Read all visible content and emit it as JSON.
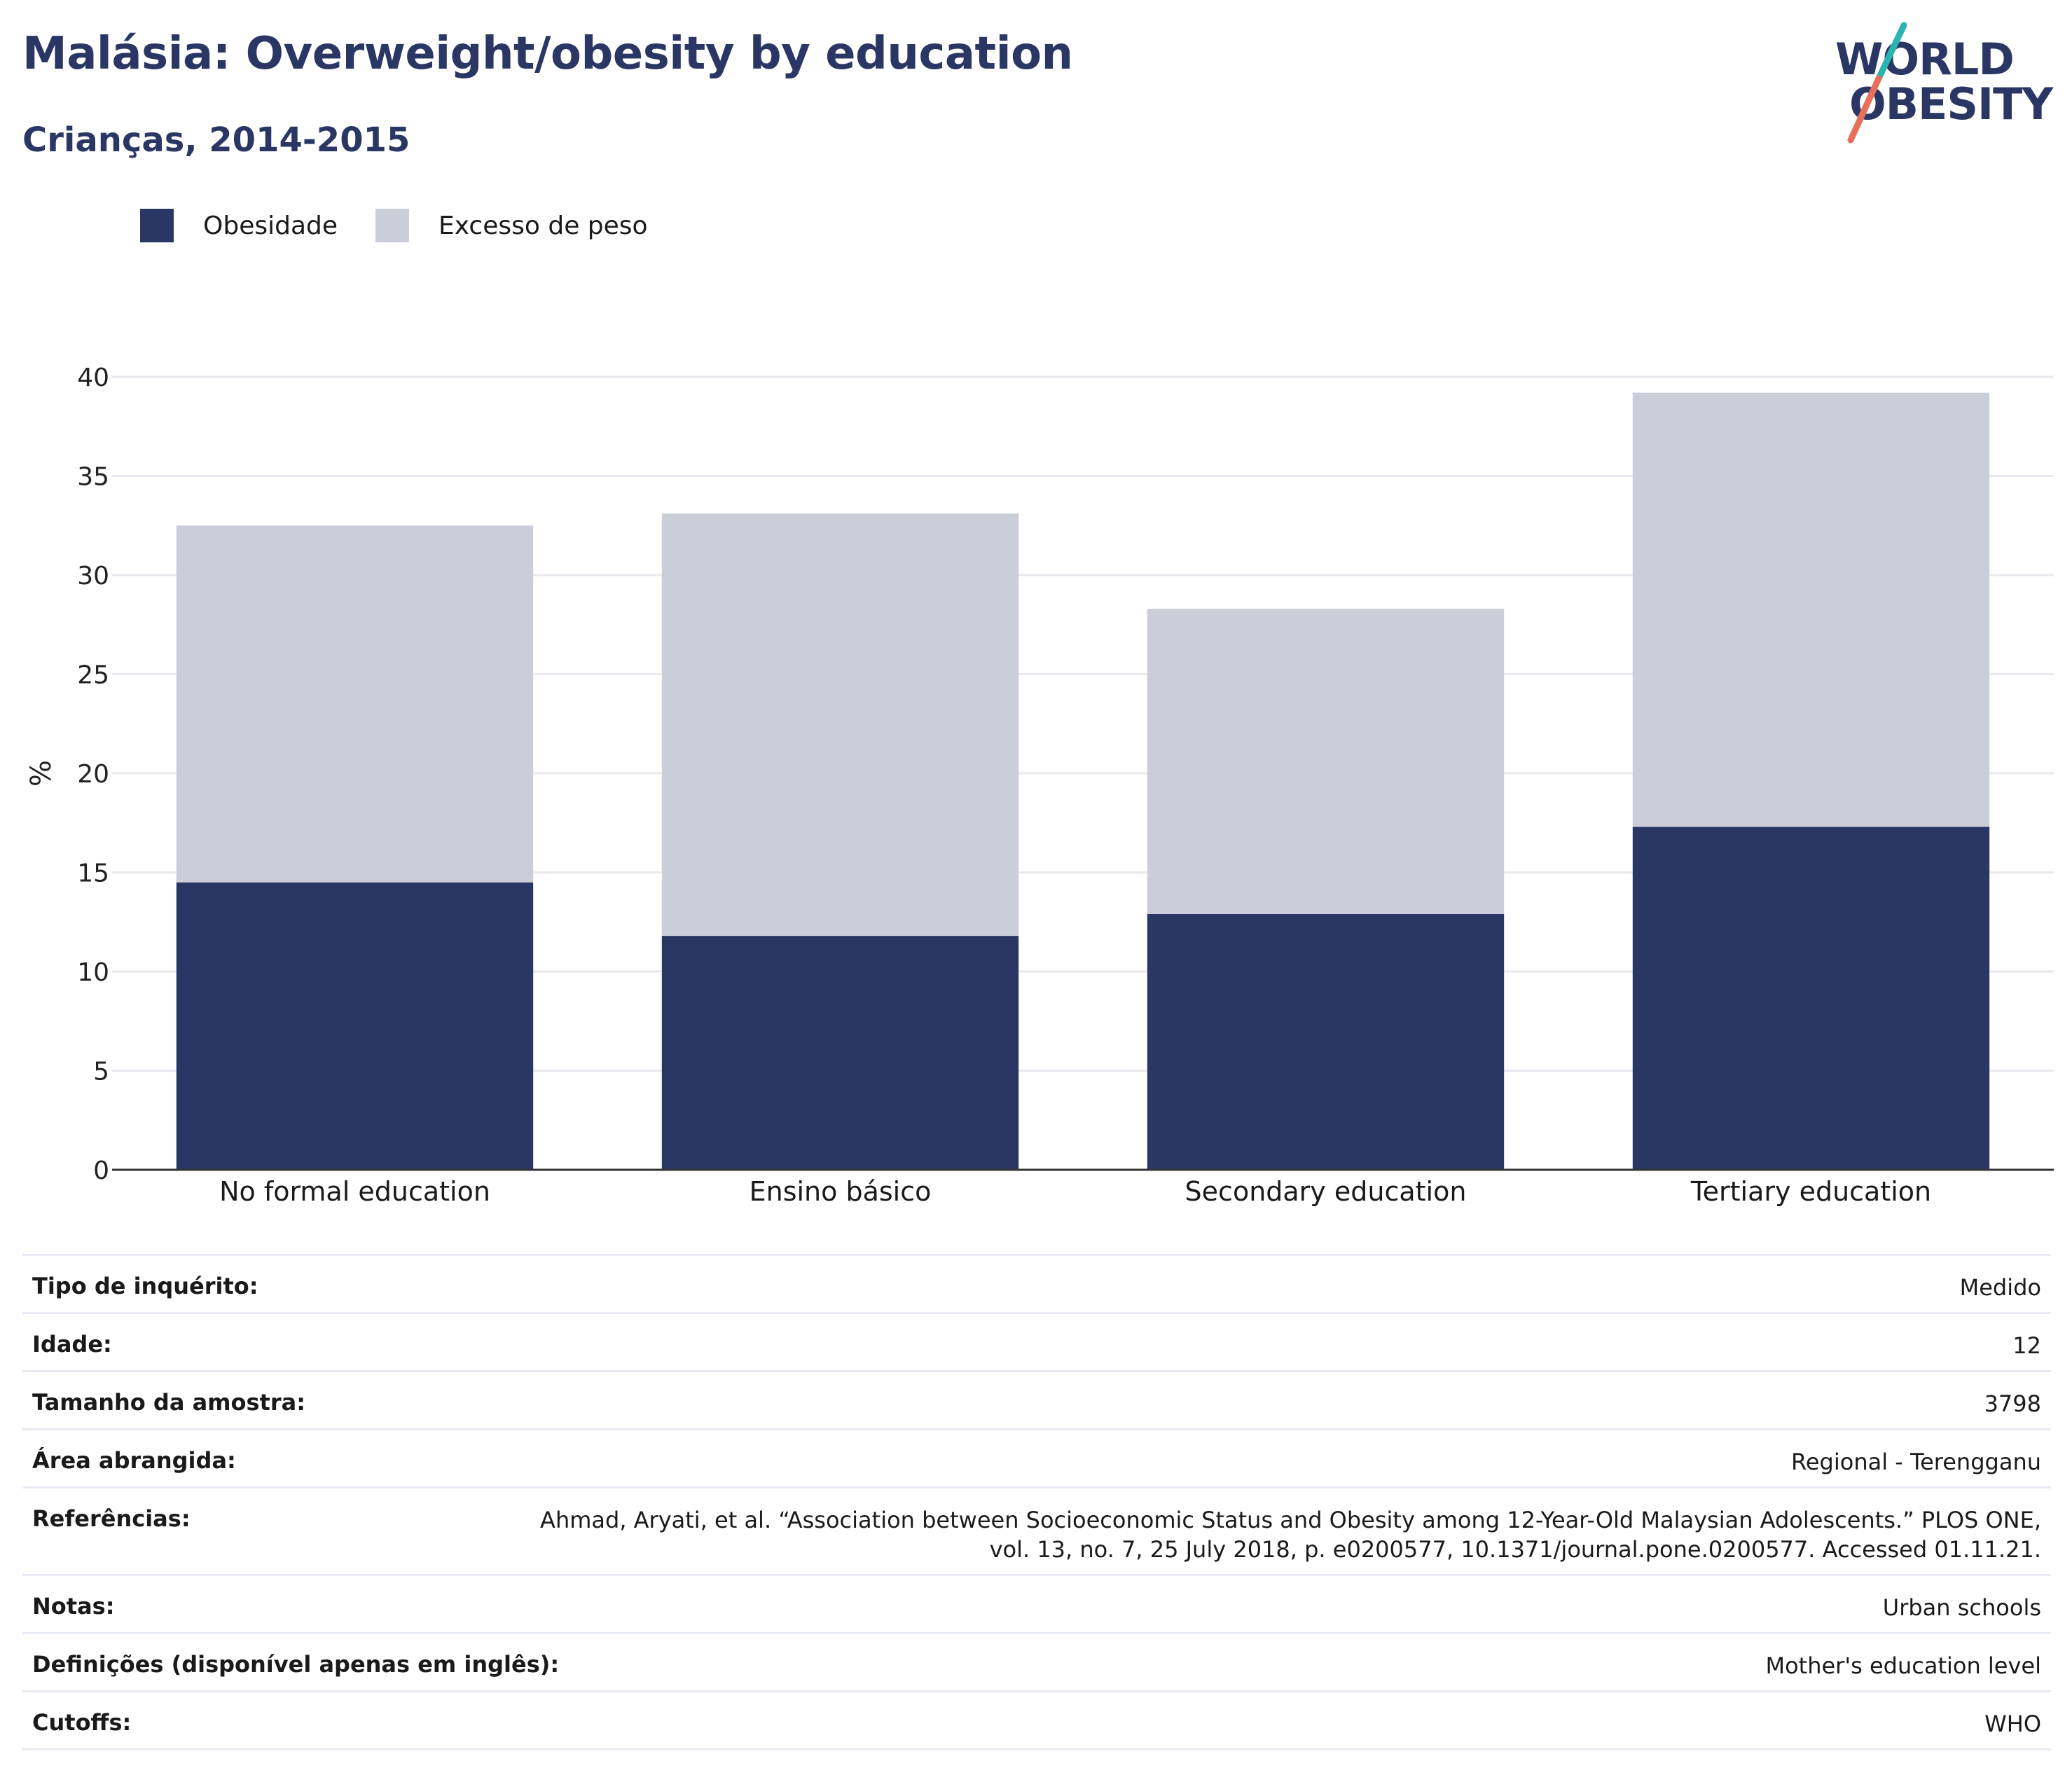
{
  "header": {
    "title": "Malásia: Overweight/obesity by education",
    "subtitle": "Crianças, 2014-2015"
  },
  "logo": {
    "line1": "WORLD",
    "line2": "OBESITY"
  },
  "colors": {
    "obesity": "#2a3765",
    "overweight": "#cbcdd9",
    "logo_teal": "#2bb5b1",
    "logo_coral": "#e8705a",
    "grid": "#e9e9ef",
    "axis": "#333333"
  },
  "legend": [
    {
      "label": "Obesidade",
      "color": "#2a3765"
    },
    {
      "label": "Excesso de peso",
      "color": "#cbcdd9"
    }
  ],
  "chart_data": {
    "type": "bar",
    "stacked": true,
    "categories": [
      "No formal education",
      "Ensino básico",
      "Secondary education",
      "Tertiary education"
    ],
    "series": [
      {
        "name": "Obesidade",
        "values": [
          14.5,
          11.8,
          12.9,
          17.3
        ]
      },
      {
        "name": "Excesso de peso",
        "values": [
          18.0,
          21.3,
          15.4,
          21.9
        ]
      }
    ],
    "ylabel": "%",
    "ylim": [
      0,
      40
    ],
    "yticks": [
      0,
      5,
      10,
      15,
      20,
      25,
      30,
      35,
      40
    ],
    "grid": true,
    "legend_position": "top-left"
  },
  "metadata": [
    {
      "label": "Tipo de inquérito:",
      "value": "Medido"
    },
    {
      "label": "Idade:",
      "value": "12"
    },
    {
      "label": "Tamanho da amostra:",
      "value": "3798"
    },
    {
      "label": "Área abrangida:",
      "value": "Regional - Terengganu"
    },
    {
      "label": "Referências:",
      "value": "Ahmad, Aryati, et al. “Association between Socioeconomic Status and Obesity among 12-Year-Old Malaysian Adolescents.” PLOS ONE,",
      "value2": "vol. 13, no. 7, 25 July 2018, p. e0200577, 10.1371/journal.pone.0200577. Accessed 01.11.21."
    },
    {
      "label": "Notas:",
      "value": "Urban schools"
    },
    {
      "label": "Definições (disponível apenas em inglês):",
      "value": "Mother's education level"
    },
    {
      "label": "Cutoffs:",
      "value": "WHO"
    }
  ]
}
